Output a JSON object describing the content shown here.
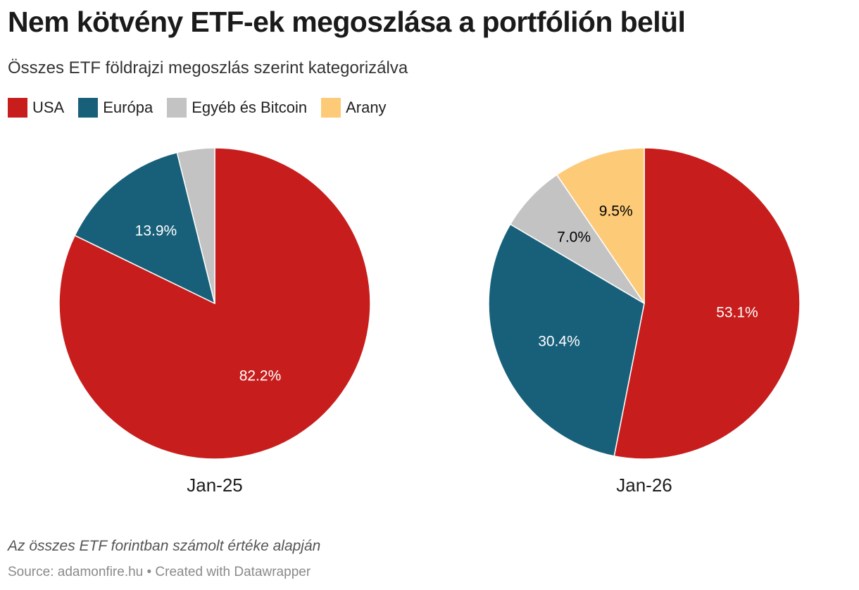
{
  "title": "Nem kötvény ETF-ek megoszlása a portfólión belül",
  "subtitle": "Összes ETF földrajzi megoszlás szerint kategorizálva",
  "legend": [
    {
      "label": "USA",
      "color": "#c71e1d"
    },
    {
      "label": "Európa",
      "color": "#18607a"
    },
    {
      "label": "Egyéb és Bitcoin",
      "color": "#c3c3c3"
    },
    {
      "label": "Arany",
      "color": "#fdca78"
    }
  ],
  "chart_data": [
    {
      "type": "pie",
      "title": "Jan-25",
      "slices": [
        {
          "category": "USA",
          "value": 82.2,
          "label": "82.2%",
          "color": "#c71e1d",
          "label_color": "#ffffff"
        },
        {
          "category": "Európa",
          "value": 13.9,
          "label": "13.9%",
          "color": "#18607a",
          "label_color": "#ffffff"
        },
        {
          "category": "Egyéb és Bitcoin",
          "value": 3.9,
          "label": "",
          "color": "#c3c3c3",
          "label_color": "#000000"
        }
      ]
    },
    {
      "type": "pie",
      "title": "Jan-26",
      "slices": [
        {
          "category": "USA",
          "value": 53.1,
          "label": "53.1%",
          "color": "#c71e1d",
          "label_color": "#ffffff"
        },
        {
          "category": "Európa",
          "value": 30.4,
          "label": "30.4%",
          "color": "#18607a",
          "label_color": "#ffffff"
        },
        {
          "category": "Egyéb és Bitcoin",
          "value": 7.0,
          "label": "7.0%",
          "color": "#c3c3c3",
          "label_color": "#000000"
        },
        {
          "category": "Arany",
          "value": 9.5,
          "label": "9.5%",
          "color": "#fdca78",
          "label_color": "#000000"
        }
      ]
    }
  ],
  "footer": {
    "note": "Az összes ETF forintban számolt értéke alapján",
    "source": "Source: adamonfire.hu • Created with Datawrapper"
  }
}
